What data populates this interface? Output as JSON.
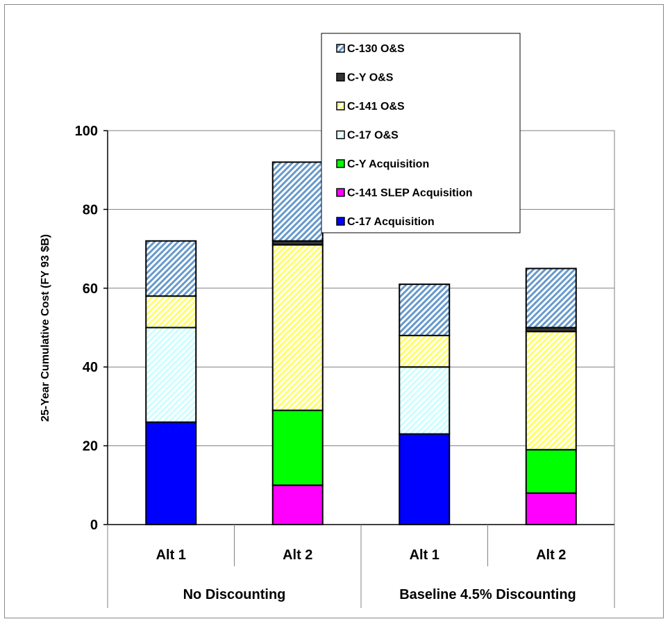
{
  "chart_data": {
    "type": "bar",
    "stacked": true,
    "title": "",
    "ylabel": "25-Year Cumulative Cost (FY 93 $B)",
    "xlabel": "",
    "ylim": [
      0,
      100
    ],
    "yticks": [
      0,
      20,
      40,
      60,
      80,
      100
    ],
    "grid": true,
    "legend_position": "top-right",
    "categories": [
      "Alt 1",
      "Alt 2",
      "Alt 1",
      "Alt 2"
    ],
    "groups": [
      {
        "label": "No Discounting",
        "categories": [
          0,
          1
        ]
      },
      {
        "label": "Baseline 4.5% Discounting",
        "categories": [
          2,
          3
        ]
      }
    ],
    "series": [
      {
        "name": "C-17 Acquisition",
        "values": [
          26,
          0,
          23,
          0
        ],
        "color": "#0000FF",
        "fill": "solid"
      },
      {
        "name": "C-141 SLEP Acquisition",
        "values": [
          0,
          10,
          0,
          8
        ],
        "color": "#FF00FF",
        "fill": "solid"
      },
      {
        "name": "C-Y Acquisition",
        "values": [
          0,
          19,
          0,
          11
        ],
        "color": "#00FF00",
        "fill": "solid"
      },
      {
        "name": "C-17 O&S",
        "values": [
          24,
          0,
          17,
          0
        ],
        "color": "#CCFFFF",
        "fill": "hatch"
      },
      {
        "name": "C-141 O&S",
        "values": [
          8,
          42,
          8,
          30
        ],
        "color": "#FFFF66",
        "fill": "hatch"
      },
      {
        "name": "C-Y O&S",
        "values": [
          0,
          1,
          0,
          1
        ],
        "color": "#333333",
        "fill": "solid"
      },
      {
        "name": "C-130 O&S",
        "values": [
          14,
          20,
          13,
          15
        ],
        "color": "#6699CC",
        "fill": "hatch"
      }
    ],
    "legend_order": [
      "C-130 O&S",
      "C-Y O&S",
      "C-141 O&S",
      "C-17 O&S",
      "C-Y Acquisition",
      "C-141 SLEP Acquisition",
      "C-17 Acquisition"
    ]
  }
}
